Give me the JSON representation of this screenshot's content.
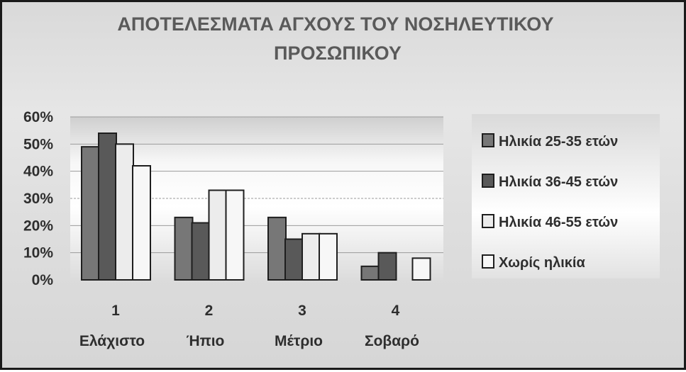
{
  "chart_data": {
    "type": "bar",
    "title_lines": [
      "ΑΠΟΤΕΛΕΣΜΑΤΑ ΑΓΧΟΥΣ ΤΟΥ ΝΟΣΗΛΕΥΤΙΚΟΥ",
      "ΠΡΟΣΩΠΙΚΟΥ"
    ],
    "categories": [
      "1",
      "2",
      "3",
      "4"
    ],
    "category_labels": [
      "Ελάχιστο",
      "Ήπιο",
      "Μέτριο",
      "Σοβαρό"
    ],
    "y_ticks": [
      "0%",
      "10%",
      "20%",
      "30%",
      "40%",
      "50%",
      "60%"
    ],
    "ylim": [
      0,
      60
    ],
    "grid": true,
    "legend_position": "right",
    "series": [
      {
        "name": "Ηλικία 25-35 ετών",
        "color": "#777777",
        "values": [
          49,
          23,
          23,
          5
        ]
      },
      {
        "name": "Ηλικία 36-45 ετών",
        "color": "#595959",
        "values": [
          54,
          21,
          15,
          10
        ]
      },
      {
        "name": "Ηλικία 46-55 ετών",
        "color": "#ececec",
        "values": [
          50,
          33,
          17,
          null
        ]
      },
      {
        "name": "Χωρίς ηλικία",
        "color": "#f7f7f7",
        "values": [
          42,
          33,
          17,
          8
        ]
      }
    ]
  }
}
